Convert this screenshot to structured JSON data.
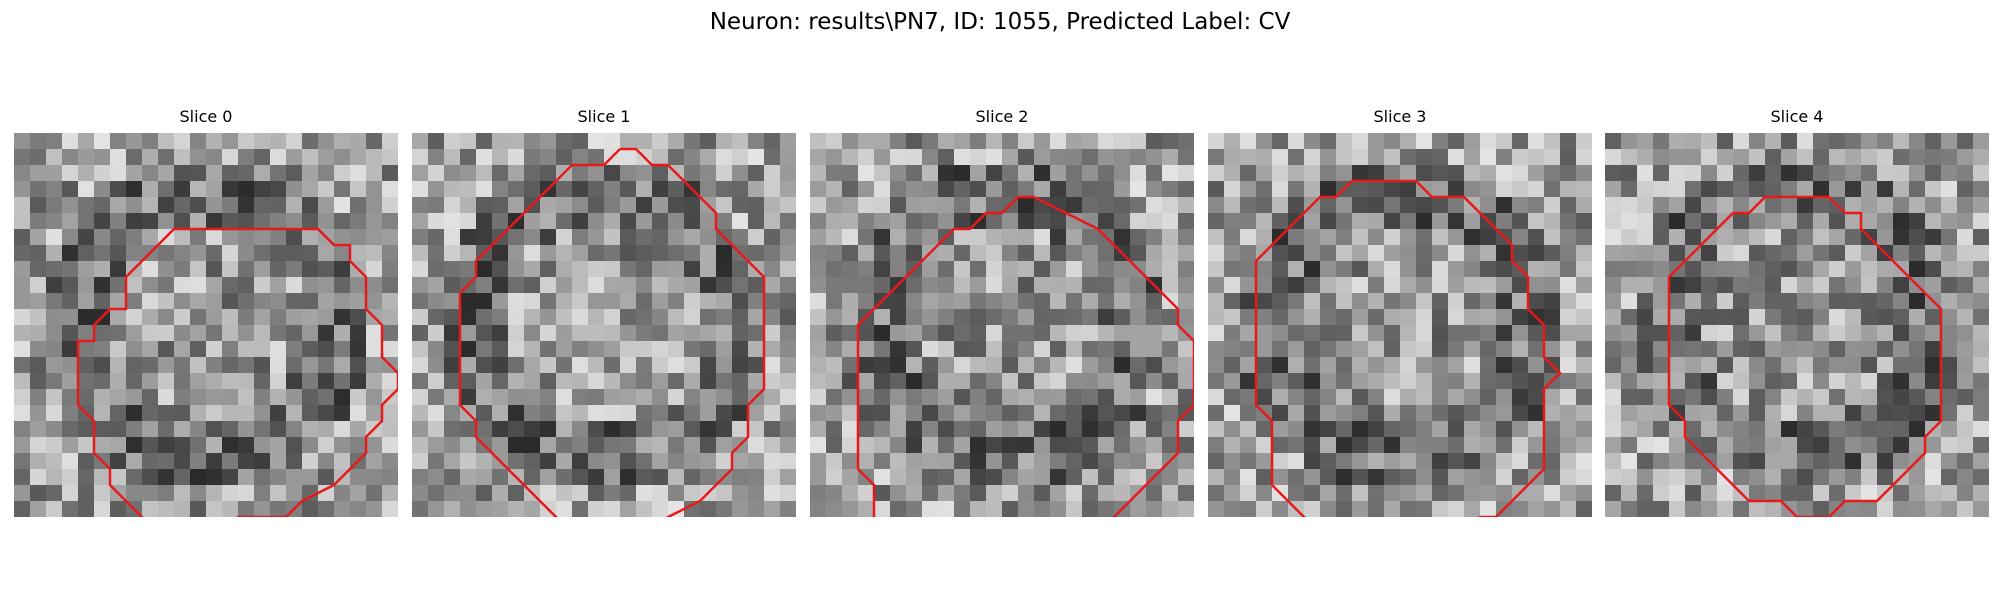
{
  "figure": {
    "title": "Neuron: results\\PN7, ID: 1055, Predicted Label: CV",
    "contour_color": "#e8191b",
    "panels": [
      {
        "title": "Slice 0",
        "image_seed": 11,
        "contour": [
          [
            13,
            2
          ],
          [
            6,
            2
          ],
          [
            3,
            5
          ],
          [
            3,
            7
          ],
          [
            2,
            7
          ],
          [
            1,
            8
          ],
          [
            1,
            9
          ],
          [
            0,
            9
          ],
          [
            0,
            13
          ],
          [
            1,
            14
          ],
          [
            1,
            16
          ],
          [
            2,
            17
          ],
          [
            2,
            18
          ],
          [
            5,
            21
          ],
          [
            9,
            21
          ],
          [
            10,
            20
          ],
          [
            13,
            20
          ],
          [
            14,
            19
          ],
          [
            16,
            18
          ],
          [
            17,
            17
          ],
          [
            18,
            16
          ],
          [
            18,
            15
          ],
          [
            19,
            14
          ],
          [
            19,
            13
          ],
          [
            20,
            12
          ],
          [
            20,
            11
          ],
          [
            19,
            10
          ],
          [
            19,
            8
          ],
          [
            18,
            7
          ],
          [
            18,
            5
          ],
          [
            17,
            4
          ],
          [
            17,
            3
          ],
          [
            16,
            3
          ],
          [
            15,
            2
          ],
          [
            13,
            2
          ]
        ]
      },
      {
        "title": "Slice 2",
        "image_seed": 33,
        "contour": [
          [
            10,
            1
          ],
          [
            9,
            2
          ],
          [
            8,
            2
          ],
          [
            7,
            3
          ],
          [
            6,
            3
          ],
          [
            5,
            4
          ],
          [
            4,
            5
          ],
          [
            3,
            6
          ],
          [
            2,
            7
          ],
          [
            1,
            8
          ],
          [
            0,
            9
          ],
          [
            0,
            18
          ],
          [
            1,
            19
          ],
          [
            1,
            21
          ],
          [
            2,
            22
          ],
          [
            5,
            25
          ],
          [
            6,
            25
          ],
          [
            7,
            26
          ],
          [
            9,
            26
          ],
          [
            10,
            25
          ],
          [
            12,
            25
          ],
          [
            13,
            24
          ],
          [
            14,
            23
          ],
          [
            15,
            22
          ],
          [
            16,
            21
          ],
          [
            17,
            20
          ],
          [
            18,
            19
          ],
          [
            19,
            18
          ],
          [
            20,
            17
          ],
          [
            20,
            15
          ],
          [
            21,
            14
          ],
          [
            21,
            10
          ],
          [
            20,
            9
          ],
          [
            20,
            8
          ],
          [
            19,
            7
          ],
          [
            18,
            6
          ],
          [
            17,
            5
          ],
          [
            16,
            4
          ],
          [
            15,
            3
          ],
          [
            13,
            2
          ],
          [
            11,
            1
          ],
          [
            10,
            1
          ]
        ]
      },
      {
        "title": "Slice 1",
        "image_seed": 22,
        "contour": [
          [
            10,
            0
          ],
          [
            9,
            1
          ],
          [
            7,
            1
          ],
          [
            6,
            2
          ],
          [
            5,
            3
          ],
          [
            4,
            4
          ],
          [
            3,
            5
          ],
          [
            2,
            6
          ],
          [
            1,
            7
          ],
          [
            1,
            8
          ],
          [
            0,
            9
          ],
          [
            0,
            11
          ],
          [
            0,
            16
          ],
          [
            1,
            17
          ],
          [
            1,
            18
          ],
          [
            2,
            19
          ],
          [
            3,
            20
          ],
          [
            4,
            21
          ],
          [
            5,
            22
          ],
          [
            6,
            23
          ],
          [
            7,
            24
          ],
          [
            9,
            24
          ],
          [
            10,
            24
          ],
          [
            12,
            24
          ],
          [
            13,
            23
          ],
          [
            15,
            22
          ],
          [
            16,
            21
          ],
          [
            17,
            20
          ],
          [
            17,
            19
          ],
          [
            18,
            18
          ],
          [
            18,
            16
          ],
          [
            19,
            15
          ],
          [
            19,
            13
          ],
          [
            19,
            11
          ],
          [
            19,
            8
          ],
          [
            18,
            7
          ],
          [
            17,
            6
          ],
          [
            16,
            5
          ],
          [
            16,
            4
          ],
          [
            15,
            3
          ],
          [
            14,
            2
          ],
          [
            13,
            1
          ],
          [
            12,
            1
          ],
          [
            11,
            0
          ],
          [
            10,
            0
          ]
        ]
      },
      {
        "title": "Slice 3",
        "image_seed": 44,
        "contour": [
          [
            8,
            0
          ],
          [
            6,
            0
          ],
          [
            5,
            1
          ],
          [
            4,
            1
          ],
          [
            3,
            2
          ],
          [
            2,
            3
          ],
          [
            1,
            4
          ],
          [
            0,
            5
          ],
          [
            0,
            11
          ],
          [
            0,
            14
          ],
          [
            1,
            15
          ],
          [
            1,
            19
          ],
          [
            2,
            20
          ],
          [
            3,
            21
          ],
          [
            4,
            22
          ],
          [
            5,
            22
          ],
          [
            6,
            23
          ],
          [
            7,
            23
          ],
          [
            8,
            23
          ],
          [
            10,
            23
          ],
          [
            11,
            22
          ],
          [
            13,
            22
          ],
          [
            14,
            21
          ],
          [
            15,
            21
          ],
          [
            16,
            20
          ],
          [
            17,
            19
          ],
          [
            18,
            18
          ],
          [
            18,
            15
          ],
          [
            18,
            13
          ],
          [
            19,
            12
          ],
          [
            18,
            11
          ],
          [
            18,
            9
          ],
          [
            17,
            8
          ],
          [
            17,
            6
          ],
          [
            16,
            5
          ],
          [
            16,
            4
          ],
          [
            15,
            3
          ],
          [
            14,
            2
          ],
          [
            13,
            1
          ],
          [
            11,
            1
          ],
          [
            10,
            0
          ],
          [
            8,
            0
          ]
        ]
      },
      {
        "title": "Slice 4",
        "image_seed": 55,
        "contour": [
          [
            9,
            0
          ],
          [
            6,
            0
          ],
          [
            5,
            1
          ],
          [
            4,
            1
          ],
          [
            3,
            2
          ],
          [
            2,
            3
          ],
          [
            1,
            4
          ],
          [
            0,
            5
          ],
          [
            0,
            8
          ],
          [
            0,
            13
          ],
          [
            1,
            14
          ],
          [
            1,
            15
          ],
          [
            2,
            16
          ],
          [
            3,
            17
          ],
          [
            4,
            18
          ],
          [
            5,
            19
          ],
          [
            7,
            19
          ],
          [
            8,
            20
          ],
          [
            10,
            20
          ],
          [
            11,
            19
          ],
          [
            13,
            19
          ],
          [
            14,
            18
          ],
          [
            15,
            17
          ],
          [
            16,
            16
          ],
          [
            16,
            15
          ],
          [
            17,
            14
          ],
          [
            17,
            13
          ],
          [
            17,
            8
          ],
          [
            17,
            7
          ],
          [
            16,
            6
          ],
          [
            15,
            5
          ],
          [
            14,
            4
          ],
          [
            13,
            3
          ],
          [
            12,
            2
          ],
          [
            12,
            1
          ],
          [
            11,
            1
          ],
          [
            10,
            0
          ],
          [
            9,
            0
          ]
        ]
      }
    ]
  }
}
